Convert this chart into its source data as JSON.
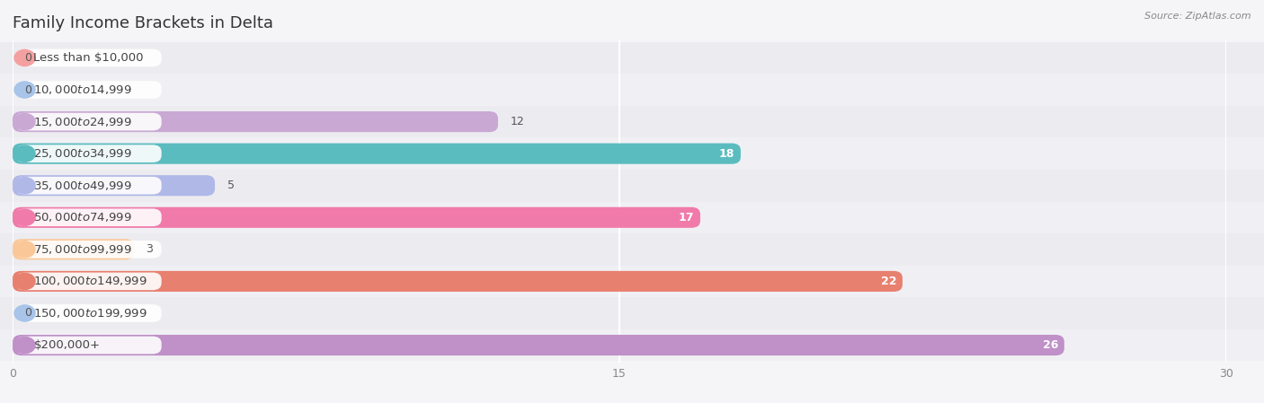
{
  "title": "Family Income Brackets in Delta",
  "source": "Source: ZipAtlas.com",
  "categories": [
    "Less than $10,000",
    "$10,000 to $14,999",
    "$15,000 to $24,999",
    "$25,000 to $34,999",
    "$35,000 to $49,999",
    "$50,000 to $74,999",
    "$75,000 to $99,999",
    "$100,000 to $149,999",
    "$150,000 to $199,999",
    "$200,000+"
  ],
  "values": [
    0,
    0,
    12,
    18,
    5,
    17,
    3,
    22,
    0,
    26
  ],
  "bar_colors": [
    "#f4a0a0",
    "#a8c4e8",
    "#c9a8d4",
    "#5bbcbf",
    "#b0b8e8",
    "#f07aaa",
    "#fac898",
    "#e88070",
    "#a8c4e8",
    "#c090c8"
  ],
  "row_bg_colors": [
    "#ededf0",
    "#f5f5f7"
  ],
  "background_color": "#f5f5f7",
  "xlim": [
    0,
    30
  ],
  "xticks": [
    0,
    15,
    30
  ],
  "title_fontsize": 13,
  "label_fontsize": 9.5,
  "value_fontsize": 9
}
